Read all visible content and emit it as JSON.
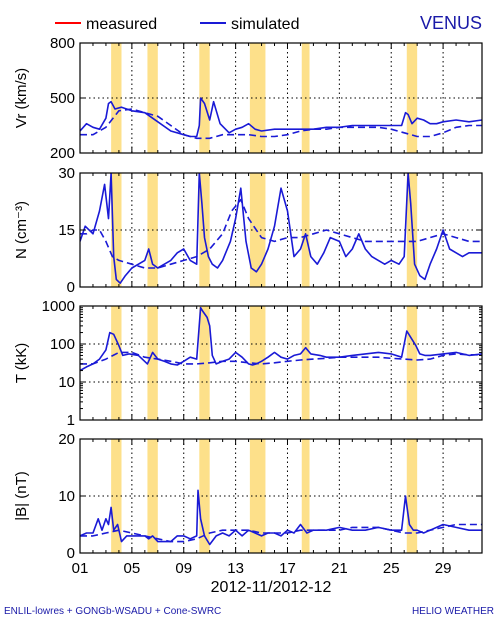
{
  "legend": [
    {
      "name": "measured",
      "color": "#ff0000"
    },
    {
      "name": "simulated",
      "color": "#1a1ad6"
    }
  ],
  "title": "VENUS",
  "xlabel": "2012-11/2012-12",
  "x_tick_labels": [
    "01",
    "05",
    "09",
    "13",
    "17",
    "21",
    "25",
    "29"
  ],
  "footer": {
    "left": "ENLIL-lowres + GONGb-WSADU + Cone-SWRC",
    "right": "HELIO  WEATHER"
  },
  "colors": {
    "simulated": "#1a1ad6",
    "highlight": "#fde08a",
    "text_blue": "#1a1aa8"
  },
  "chart_data": [
    {
      "type": "line",
      "id": "vr",
      "ylabel": "Vr (km/s)",
      "yticks": [
        "200",
        "500",
        "800"
      ],
      "ylim": [
        200,
        800
      ],
      "xlim": [
        1,
        32
      ],
      "highlights": [
        [
          3.4,
          4.2
        ],
        [
          6.2,
          7.0
        ],
        [
          10.2,
          11.0
        ],
        [
          14.1,
          15.3
        ],
        [
          18.1,
          18.7
        ],
        [
          26.2,
          27.0
        ]
      ],
      "series": [
        {
          "name": "simulated",
          "style": "solid",
          "x": [
            1,
            1.5,
            2,
            2.5,
            3,
            3.2,
            3.4,
            3.7,
            4.2,
            5,
            6,
            7,
            8,
            9,
            9.5,
            10,
            10.2,
            10.3,
            10.6,
            11,
            11.3,
            11.8,
            12.5,
            13,
            13.5,
            14,
            14.5,
            15,
            16,
            17,
            18,
            19,
            20,
            21,
            22,
            23,
            24,
            25,
            25.8,
            26.1,
            26.3,
            26.6,
            27,
            27.5,
            28,
            28.5,
            29,
            30,
            31,
            32
          ],
          "y": [
            320,
            360,
            340,
            330,
            390,
            470,
            480,
            440,
            450,
            430,
            420,
            370,
            320,
            300,
            290,
            290,
            350,
            500,
            470,
            380,
            480,
            360,
            310,
            330,
            340,
            360,
            330,
            320,
            330,
            330,
            330,
            330,
            340,
            340,
            350,
            350,
            350,
            350,
            350,
            420,
            410,
            360,
            390,
            380,
            360,
            360,
            370,
            380,
            370,
            380
          ]
        },
        {
          "name": "simulated",
          "style": "dashed",
          "x": [
            1,
            2,
            3,
            4,
            5,
            6,
            7,
            8,
            9,
            10,
            11,
            12,
            13,
            14,
            15,
            16,
            17,
            18,
            19,
            20,
            21,
            22,
            23,
            24,
            25,
            26,
            27,
            28,
            29,
            30,
            31,
            32
          ],
          "y": [
            300,
            300,
            340,
            430,
            440,
            420,
            400,
            350,
            300,
            280,
            280,
            300,
            300,
            300,
            290,
            290,
            300,
            320,
            330,
            330,
            340,
            340,
            340,
            340,
            330,
            310,
            290,
            290,
            310,
            340,
            350,
            350
          ]
        }
      ]
    },
    {
      "type": "line",
      "id": "n",
      "ylabel": "N (cm⁻³)",
      "yticks": [
        "0",
        "15",
        "30"
      ],
      "ylim": [
        0,
        30
      ],
      "xlim": [
        1,
        32
      ],
      "highlights": [
        [
          3.4,
          4.2
        ],
        [
          6.2,
          7.0
        ],
        [
          10.2,
          11.0
        ],
        [
          14.1,
          15.3
        ],
        [
          18.1,
          18.7
        ],
        [
          26.2,
          27.0
        ]
      ],
      "series": [
        {
          "name": "simulated",
          "style": "solid",
          "x": [
            1,
            1.4,
            2,
            2.5,
            2.9,
            3.2,
            3.4,
            3.6,
            3.8,
            4.1,
            4.5,
            5,
            5.5,
            6,
            6.3,
            6.6,
            7,
            7.5,
            8,
            8.5,
            9,
            9.5,
            10,
            10.2,
            10.4,
            10.6,
            10.9,
            11.2,
            11.6,
            12,
            12.6,
            13,
            13.4,
            13.8,
            14.2,
            14.6,
            15,
            15.5,
            16,
            16.5,
            17,
            17.5,
            18,
            18.4,
            18.8,
            19.3,
            19.8,
            20.3,
            21,
            21.5,
            22,
            22.5,
            23,
            23.5,
            24,
            24.5,
            25,
            25.6,
            26,
            26.3,
            26.5,
            26.8,
            27.2,
            27.6,
            28,
            28.5,
            29,
            29.5,
            30,
            30.5,
            31,
            32
          ],
          "y": [
            12,
            16,
            14,
            20,
            27,
            18,
            30,
            8,
            2,
            1,
            3,
            5,
            6,
            7,
            10,
            6,
            5,
            6,
            7,
            9,
            10,
            7,
            6,
            30,
            22,
            13,
            8,
            6,
            5,
            7,
            12,
            18,
            26,
            12,
            5,
            4,
            6,
            10,
            16,
            26,
            20,
            8,
            10,
            14,
            8,
            6,
            9,
            13,
            12,
            8,
            10,
            14,
            10,
            8,
            7,
            6,
            7,
            6,
            8,
            30,
            22,
            6,
            3,
            2,
            6,
            10,
            15,
            10,
            9,
            8,
            9,
            9
          ]
        },
        {
          "name": "simulated",
          "style": "dashed",
          "x": [
            1,
            1.5,
            2,
            2.5,
            3,
            3.5,
            4,
            5,
            6,
            7,
            8,
            9,
            10,
            11,
            12,
            12.7,
            13.4,
            14,
            15,
            16,
            17,
            18,
            19,
            20,
            21,
            22,
            23,
            24,
            25,
            26,
            27,
            28,
            29,
            30,
            31,
            32
          ],
          "y": [
            14,
            14,
            15,
            15,
            12,
            8,
            7,
            6,
            5,
            5,
            6,
            7,
            8,
            10,
            14,
            20,
            23,
            18,
            13,
            12,
            13,
            13,
            14,
            15,
            14,
            13,
            12,
            12,
            12,
            12,
            12,
            13,
            14,
            13,
            12,
            12
          ]
        }
      ]
    },
    {
      "type": "line",
      "id": "t",
      "ylabel": "T (kK)",
      "log_scale": true,
      "yticks": [
        "1",
        "10",
        "100",
        "1000"
      ],
      "ylim": [
        1,
        1000
      ],
      "xlim": [
        1,
        32
      ],
      "highlights": [
        [
          3.4,
          4.2
        ],
        [
          6.2,
          7.0
        ],
        [
          10.2,
          11.0
        ],
        [
          14.1,
          15.3
        ],
        [
          18.1,
          18.7
        ],
        [
          26.2,
          27.0
        ]
      ],
      "series": [
        {
          "name": "simulated",
          "style": "solid",
          "x": [
            1,
            1.5,
            2,
            2.5,
            3,
            3.3,
            3.6,
            4,
            4.3,
            4.8,
            5.5,
            6.2,
            6.6,
            7,
            7.5,
            8,
            8.5,
            9,
            9.5,
            10,
            10.3,
            10.5,
            10.8,
            11,
            11.2,
            11.5,
            12,
            12.5,
            13,
            13.5,
            14,
            14.3,
            14.6,
            15,
            15.5,
            16,
            16.5,
            17,
            17.5,
            18,
            18.4,
            18.8,
            19.5,
            20,
            21,
            22,
            23,
            24,
            25,
            25.8,
            26.2,
            26.5,
            26.9,
            27.2,
            27.6,
            28,
            29,
            30,
            31,
            32
          ],
          "y": [
            20,
            25,
            30,
            40,
            70,
            200,
            180,
            90,
            50,
            55,
            50,
            30,
            60,
            40,
            35,
            30,
            28,
            35,
            45,
            40,
            900,
            700,
            500,
            300,
            50,
            30,
            35,
            40,
            60,
            45,
            30,
            28,
            30,
            35,
            45,
            60,
            45,
            40,
            50,
            55,
            80,
            55,
            50,
            45,
            45,
            50,
            55,
            60,
            55,
            45,
            220,
            150,
            90,
            55,
            50,
            50,
            55,
            60,
            50,
            55
          ]
        },
        {
          "name": "simulated",
          "style": "dashed",
          "x": [
            1,
            2,
            3,
            4,
            5,
            6,
            7,
            8,
            9,
            10,
            11,
            12,
            13,
            14,
            15,
            16,
            17,
            18,
            19,
            20,
            21,
            22,
            23,
            24,
            25,
            26,
            27,
            28,
            29,
            30,
            31,
            32
          ],
          "y": [
            30,
            30,
            40,
            60,
            60,
            45,
            40,
            35,
            30,
            30,
            32,
            35,
            35,
            32,
            30,
            32,
            35,
            38,
            40,
            42,
            45,
            45,
            45,
            45,
            42,
            40,
            38,
            40,
            50,
            55,
            52,
            52
          ]
        }
      ]
    },
    {
      "type": "line",
      "id": "b",
      "ylabel": "|B| (nT)",
      "yticks": [
        "0",
        "10",
        "20"
      ],
      "ylim": [
        0,
        20
      ],
      "xlim": [
        1,
        32
      ],
      "highlights": [
        [
          3.4,
          4.2
        ],
        [
          6.2,
          7.0
        ],
        [
          10.2,
          11.0
        ],
        [
          14.1,
          15.3
        ],
        [
          18.1,
          18.7
        ],
        [
          26.2,
          27.0
        ]
      ],
      "series": [
        {
          "name": "simulated",
          "style": "solid",
          "x": [
            1,
            1.5,
            2,
            2.4,
            2.7,
            3,
            3.2,
            3.4,
            3.6,
            3.9,
            4.2,
            4.6,
            5,
            5.5,
            6,
            6.3,
            6.6,
            7,
            7.5,
            8,
            8.5,
            9,
            9.5,
            10,
            10.1,
            10.3,
            10.6,
            11,
            11.5,
            12,
            12.5,
            13,
            13.5,
            14,
            14.5,
            15,
            15.5,
            16,
            16.5,
            17,
            17.5,
            18,
            18.5,
            19,
            19.5,
            20,
            21,
            22,
            23,
            24,
            25,
            25.8,
            26.1,
            26.4,
            26.7,
            27,
            27.5,
            28,
            28.5,
            29,
            30,
            31,
            32
          ],
          "y": [
            3,
            3.5,
            3.5,
            6,
            4,
            6,
            5,
            8,
            4,
            5,
            2,
            3,
            3,
            3,
            3,
            2.5,
            3,
            2,
            2,
            2,
            3,
            3,
            2.5,
            3,
            11,
            6,
            3,
            1.5,
            3,
            3.5,
            3,
            4,
            3,
            4,
            3.5,
            3,
            3.5,
            3.5,
            3,
            4,
            3.5,
            5,
            3.5,
            4,
            4,
            4,
            4.5,
            4,
            4,
            4.5,
            4,
            4,
            10,
            5,
            4,
            4,
            3.5,
            4,
            4.5,
            5,
            4.5,
            4,
            4
          ]
        },
        {
          "name": "simulated",
          "style": "dashed",
          "x": [
            1,
            2,
            3,
            4,
            5,
            6,
            7,
            8,
            9,
            10,
            11,
            12,
            13,
            14,
            15,
            16,
            17,
            18,
            19,
            20,
            21,
            22,
            23,
            24,
            25,
            26,
            27,
            28,
            29,
            30,
            31,
            32
          ],
          "y": [
            3,
            3,
            3.5,
            4,
            3.5,
            3,
            2.5,
            2,
            2,
            2.5,
            3.5,
            4,
            4,
            4,
            3.5,
            3.5,
            3.5,
            4,
            4,
            4,
            4,
            4.5,
            4.5,
            4.5,
            4,
            3.5,
            3.5,
            4,
            4.5,
            5,
            5,
            5
          ]
        }
      ]
    }
  ]
}
